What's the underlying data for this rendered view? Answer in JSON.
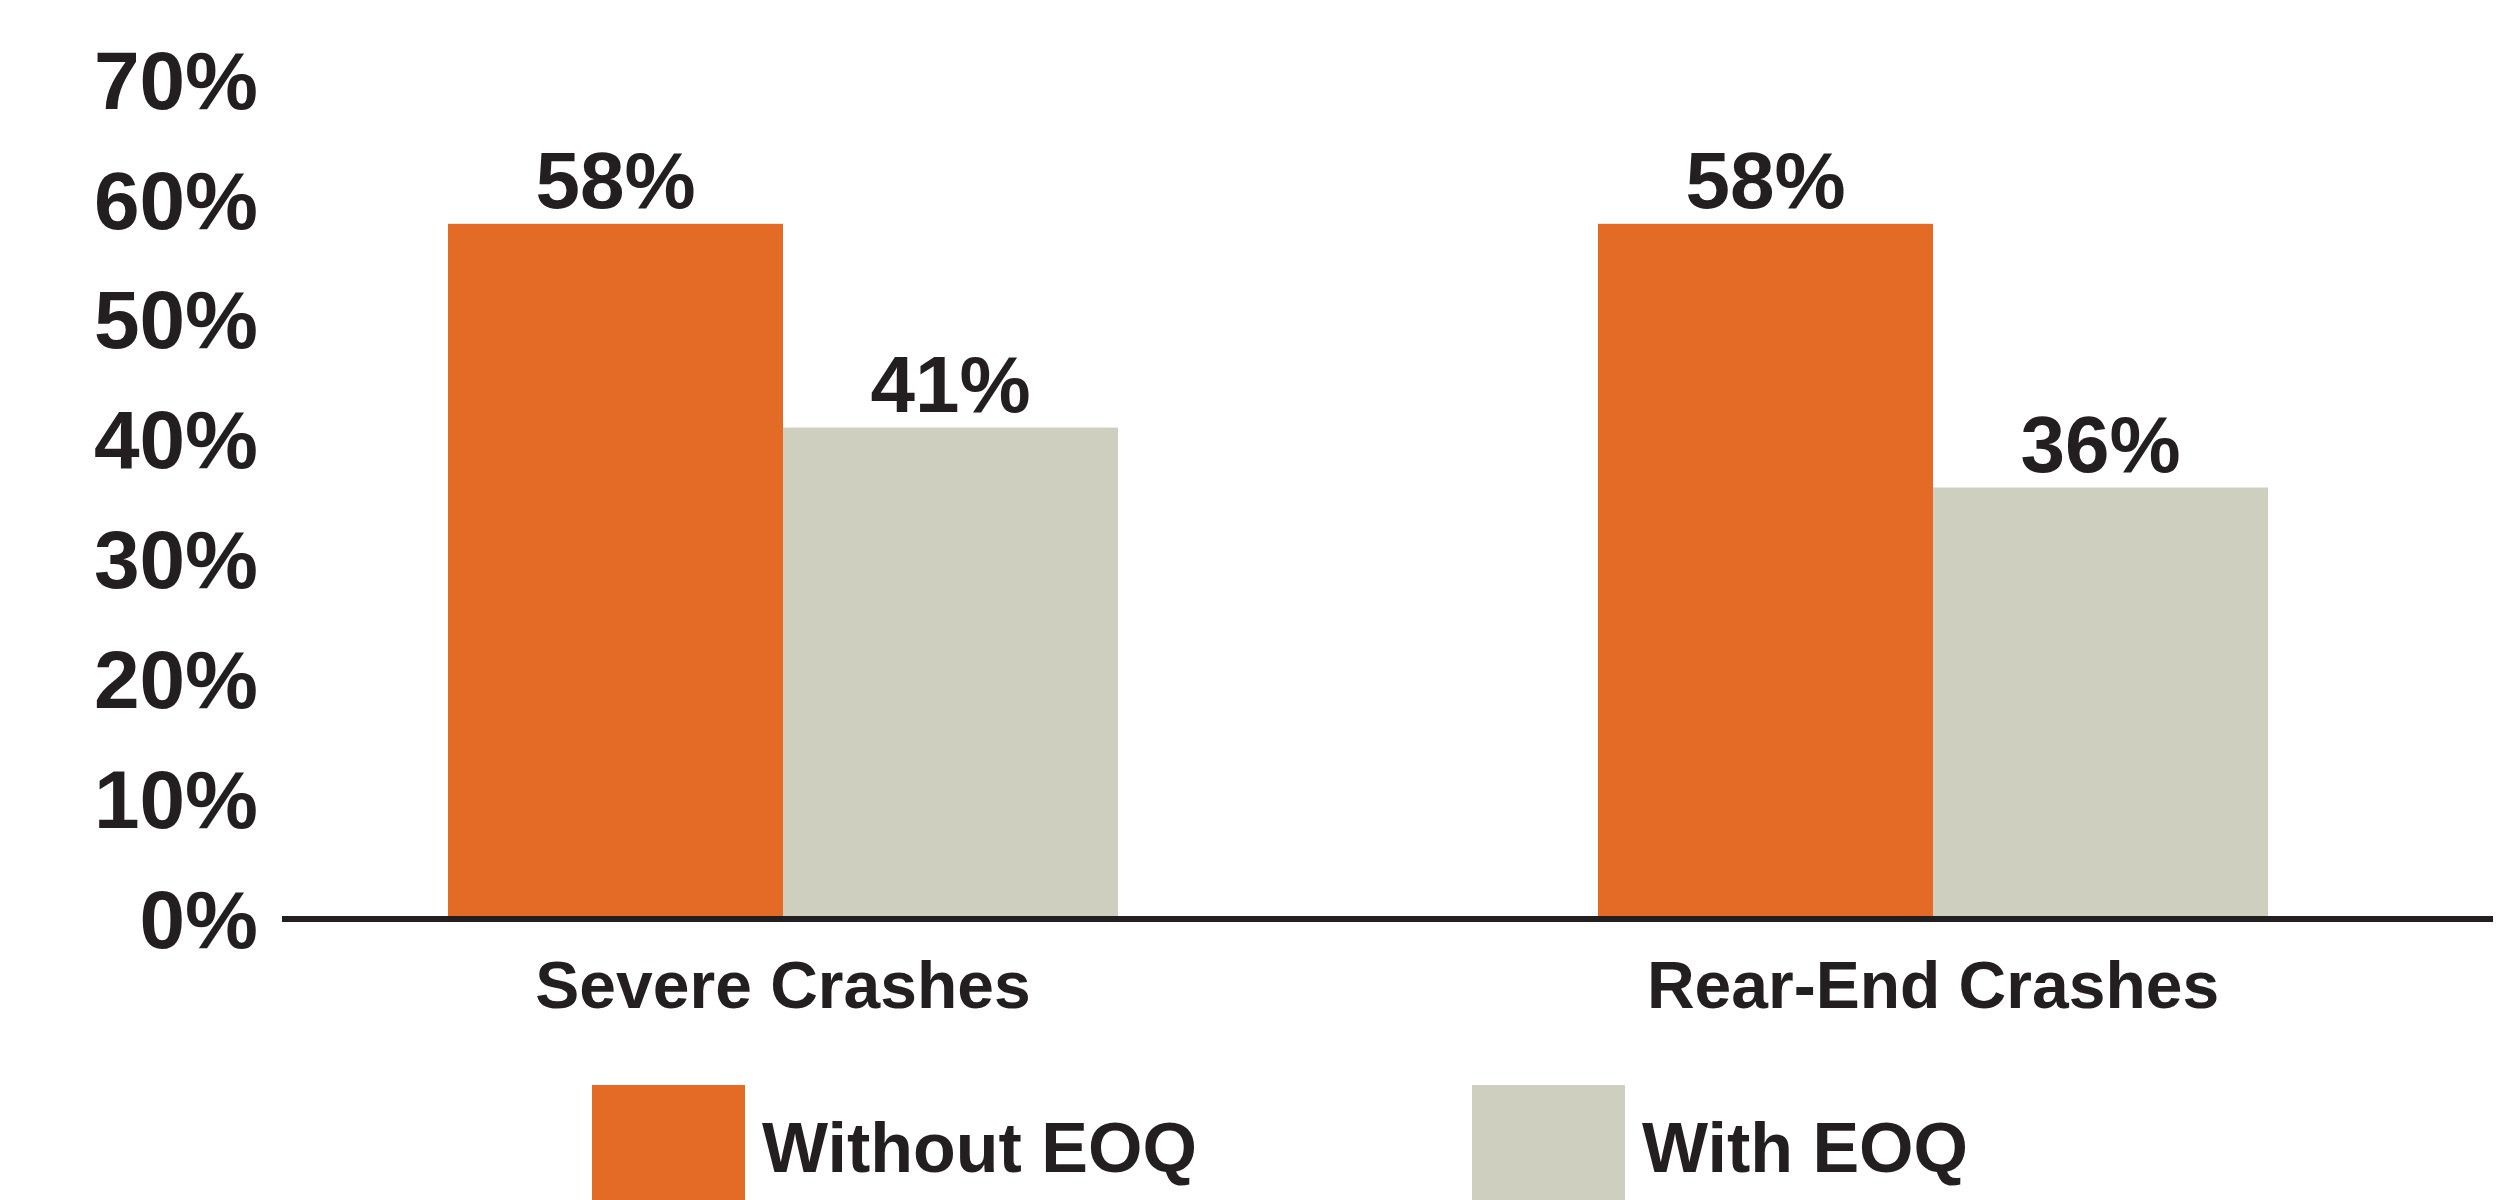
{
  "chart_data": {
    "type": "bar",
    "categories": [
      "Severe Crashes",
      "Rear-End Crashes"
    ],
    "series": [
      {
        "name": "Without EOQ",
        "color": "#e36b26",
        "values": [
          58,
          58
        ]
      },
      {
        "name": "With EOQ",
        "color": "#cfcfbf",
        "values": [
          41,
          36
        ]
      }
    ],
    "ylim": [
      0,
      70
    ],
    "yticks": [
      {
        "value": 0,
        "label": "0%"
      },
      {
        "value": 10,
        "label": "10%"
      },
      {
        "value": 20,
        "label": "20%"
      },
      {
        "value": 30,
        "label": "30%"
      },
      {
        "value": 40,
        "label": "40%"
      },
      {
        "value": 50,
        "label": "50%"
      },
      {
        "value": 60,
        "label": "60%"
      },
      {
        "value": 70,
        "label": "70%"
      }
    ],
    "value_labels": [
      [
        "58%",
        "58%"
      ],
      [
        "41%",
        "36%"
      ]
    ],
    "grid": false,
    "legend": "bottom"
  }
}
